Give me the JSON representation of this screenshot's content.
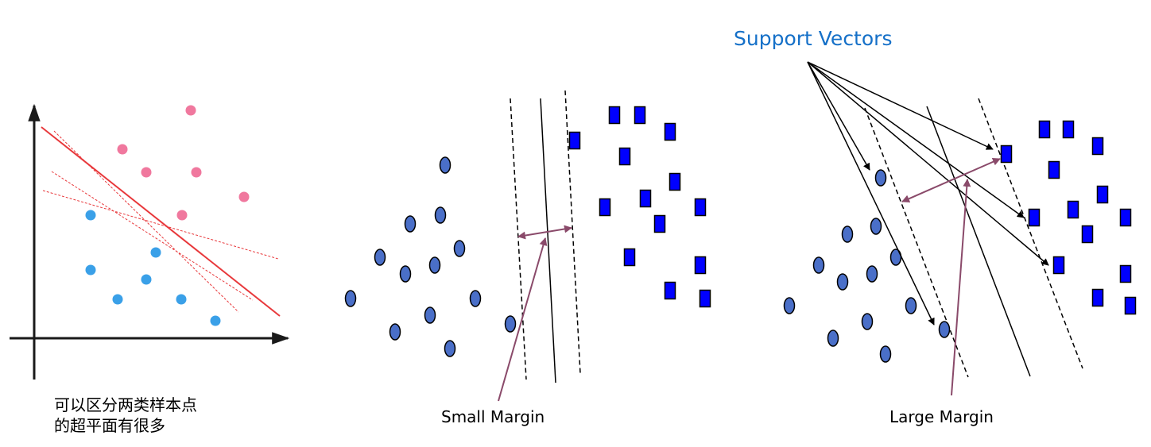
{
  "panel1": {
    "caption_line1": "可以区分两类样本点",
    "caption_line2": "的超平面有很多",
    "pink_points": [
      [
        240,
        139
      ],
      [
        154,
        188
      ],
      [
        184,
        217
      ],
      [
        247,
        217
      ],
      [
        307,
        248
      ],
      [
        229,
        271
      ]
    ],
    "blue_points": [
      [
        114,
        271
      ],
      [
        196,
        318
      ],
      [
        114,
        340
      ],
      [
        184,
        352
      ],
      [
        148,
        377
      ],
      [
        228,
        377
      ],
      [
        271,
        404
      ]
    ],
    "colors": {
      "pink": "#f0789e",
      "blue": "#3aa0e8",
      "hyperplane": "#e8393c",
      "axis": "#1a1a1a"
    }
  },
  "panel2": {
    "label": "Small Margin",
    "ellipses": [
      [
        560,
        208
      ],
      [
        554,
        271
      ],
      [
        516,
        282
      ],
      [
        578,
        313
      ],
      [
        478,
        324
      ],
      [
        547,
        334
      ],
      [
        510,
        345
      ],
      [
        441,
        376
      ],
      [
        598,
        376
      ],
      [
        541,
        397
      ],
      [
        642,
        408
      ],
      [
        497,
        418
      ],
      [
        566,
        439
      ]
    ],
    "squares": [
      [
        773,
        145
      ],
      [
        805,
        145
      ],
      [
        723,
        177
      ],
      [
        843,
        166
      ],
      [
        786,
        197
      ],
      [
        849,
        229
      ],
      [
        812,
        250
      ],
      [
        761,
        261
      ],
      [
        881,
        261
      ],
      [
        830,
        282
      ],
      [
        792,
        324
      ],
      [
        881,
        334
      ],
      [
        843,
        366
      ],
      [
        887,
        376
      ]
    ]
  },
  "panel3": {
    "label": "Large Margin",
    "title": "Support Vectors",
    "ellipses": [
      [
        1108,
        224
      ],
      [
        1102,
        285
      ],
      [
        1066,
        295
      ],
      [
        1127,
        324
      ],
      [
        1030,
        334
      ],
      [
        1097,
        345
      ],
      [
        1060,
        355
      ],
      [
        1146,
        385
      ],
      [
        993,
        385
      ],
      [
        1091,
        405
      ],
      [
        1188,
        415
      ],
      [
        1048,
        426
      ],
      [
        1114,
        446
      ]
    ],
    "squares": [
      [
        1314,
        163
      ],
      [
        1344,
        163
      ],
      [
        1381,
        184
      ],
      [
        1266,
        194
      ],
      [
        1326,
        214
      ],
      [
        1387,
        245
      ],
      [
        1350,
        264
      ],
      [
        1301,
        274
      ],
      [
        1416,
        274
      ],
      [
        1368,
        295
      ],
      [
        1332,
        334
      ],
      [
        1416,
        345
      ],
      [
        1381,
        375
      ],
      [
        1422,
        385
      ]
    ]
  },
  "colors": {
    "ellipse_fill": "#4a6fc8",
    "square_fill": "#0000ff",
    "margin_arrow": "#8a4a6a",
    "title": "#1570c8"
  }
}
